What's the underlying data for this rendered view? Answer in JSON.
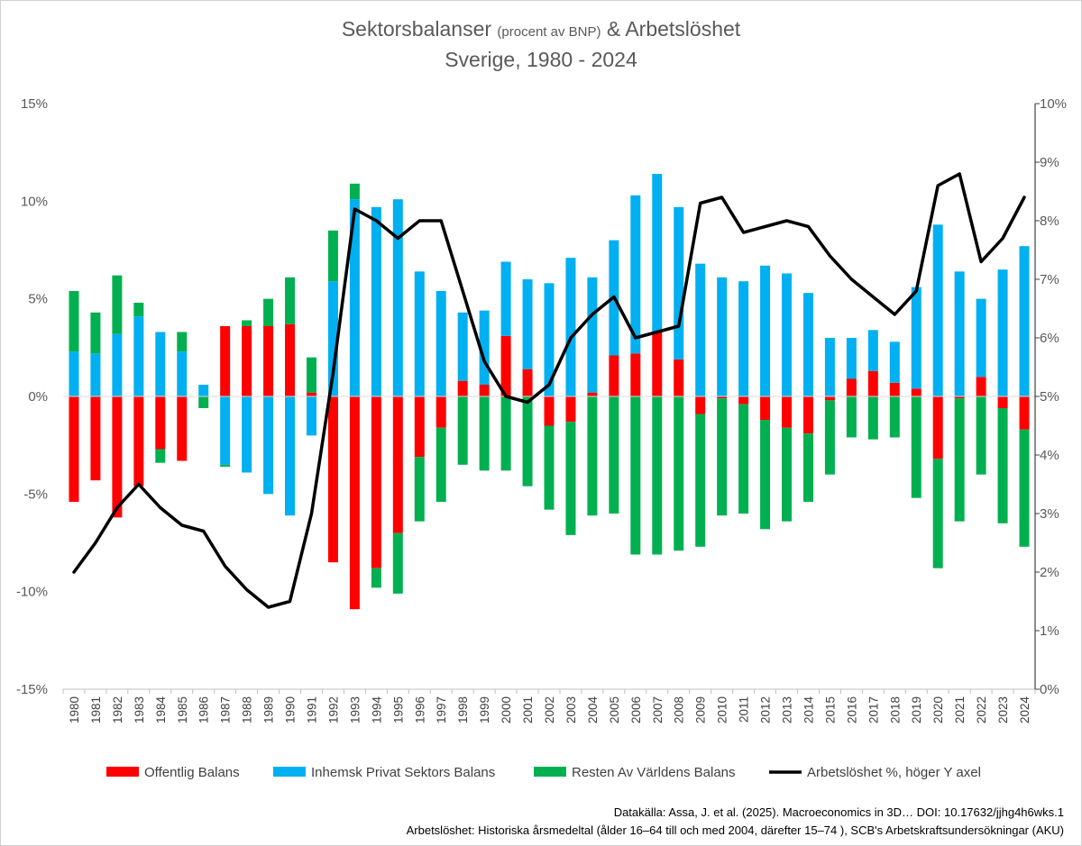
{
  "chart_data": {
    "type": "bar",
    "title_line1_a": "Sektorsbalanser",
    "title_line1_b": "(procent av BNP)",
    "title_line1_c": "& Arbetslöshet",
    "title_line2": "Sverige, 1980 - 2024",
    "stacked": true,
    "left_axis": {
      "ylim": [
        -15,
        15
      ],
      "ticks": [
        "15%",
        "10%",
        "5%",
        "0%",
        "-5%",
        "-10%",
        "-15%"
      ]
    },
    "right_axis": {
      "ylim": [
        0,
        10
      ],
      "ticks": [
        "10%",
        "9%",
        "8%",
        "7%",
        "6%",
        "5%",
        "4%",
        "3%",
        "2%",
        "1%",
        "0%"
      ]
    },
    "categories": [
      "1980",
      "1981",
      "1982",
      "1983",
      "1984",
      "1985",
      "1986",
      "1987",
      "1988",
      "1989",
      "1990",
      "1991",
      "1992",
      "1993",
      "1994",
      "1995",
      "1996",
      "1997",
      "1998",
      "1999",
      "2000",
      "2001",
      "2002",
      "2003",
      "2004",
      "2005",
      "2006",
      "2007",
      "2008",
      "2009",
      "2010",
      "2011",
      "2012",
      "2013",
      "2014",
      "2015",
      "2016",
      "2017",
      "2018",
      "2019",
      "2020",
      "2021",
      "2022",
      "2023",
      "2024"
    ],
    "series": [
      {
        "name": "Offentlig Balans",
        "color": "#ff0000",
        "kind": "bar",
        "values": [
          -5.4,
          -4.3,
          -6.2,
          -4.6,
          -2.7,
          -3.3,
          0.0,
          3.6,
          3.6,
          3.6,
          3.7,
          0.2,
          -8.5,
          -10.9,
          -8.8,
          -7.0,
          -3.1,
          -1.6,
          0.8,
          0.6,
          3.1,
          1.4,
          -1.5,
          -1.3,
          0.2,
          2.1,
          2.2,
          3.3,
          1.9,
          -0.9,
          -0.1,
          -0.4,
          -1.2,
          -1.6,
          -1.9,
          -0.2,
          0.9,
          1.3,
          0.7,
          0.4,
          -3.2,
          -0.1,
          1.0,
          -0.6,
          -1.7
        ]
      },
      {
        "name": "Inhemsk Privat Sektors Balans",
        "color": "#00b0f0",
        "kind": "bar",
        "values": [
          2.3,
          2.2,
          3.2,
          4.1,
          3.3,
          2.3,
          0.6,
          -3.5,
          -3.9,
          -5.0,
          -6.1,
          -2.0,
          5.9,
          10.1,
          9.7,
          10.1,
          6.4,
          5.4,
          3.5,
          3.8,
          3.8,
          4.6,
          5.8,
          7.1,
          5.9,
          5.9,
          8.1,
          8.1,
          7.8,
          6.8,
          6.1,
          5.9,
          6.7,
          6.3,
          5.3,
          3.0,
          2.1,
          2.1,
          2.1,
          5.2,
          8.8,
          6.4,
          4.0,
          6.5,
          7.7
        ]
      },
      {
        "name": "Resten Av Världens Balans",
        "color": "#00b050",
        "kind": "bar",
        "values": [
          3.1,
          2.1,
          3.0,
          0.7,
          -0.7,
          1.0,
          -0.6,
          -0.1,
          0.3,
          1.4,
          2.4,
          1.8,
          2.6,
          0.8,
          -1.0,
          -3.1,
          -3.3,
          -3.8,
          -3.5,
          -3.8,
          -3.8,
          -4.6,
          -4.3,
          -5.8,
          -6.1,
          -6.0,
          -8.1,
          -8.1,
          -7.9,
          -6.8,
          -6.0,
          -5.6,
          -5.6,
          -4.8,
          -3.5,
          -3.8,
          -2.1,
          -2.2,
          -2.1,
          -5.2,
          -5.6,
          -6.3,
          -4.0,
          -5.9,
          -6.0
        ]
      },
      {
        "name": "Arbetslöshet %, höger Y axel",
        "color": "#000000",
        "kind": "line",
        "axis": "right",
        "values": [
          2.0,
          2.5,
          3.1,
          3.5,
          3.1,
          2.8,
          2.7,
          2.1,
          1.7,
          1.4,
          1.5,
          3.0,
          5.4,
          8.2,
          8.0,
          7.7,
          8.0,
          8.0,
          6.8,
          5.6,
          5.0,
          4.9,
          5.2,
          6.0,
          6.4,
          6.7,
          6.0,
          6.1,
          6.2,
          8.3,
          8.4,
          7.8,
          7.9,
          8.0,
          7.9,
          7.4,
          7.0,
          6.7,
          6.4,
          6.8,
          8.6,
          8.8,
          7.3,
          7.7,
          8.4
        ]
      }
    ],
    "grid": false,
    "legend_position": "bottom"
  },
  "source": {
    "line1": "Datakälla: Assa, J. et al. (2025). Macroeconomics in 3D… DOI: 10.17632/jjhg4h6wks.1",
    "line2": "Arbetslöshet: Historiska årsmedeltal (ålder 16–64 till och med 2004, därefter 15–74 ),  SCB's Arbetskraftsundersökningar (AKU)"
  }
}
